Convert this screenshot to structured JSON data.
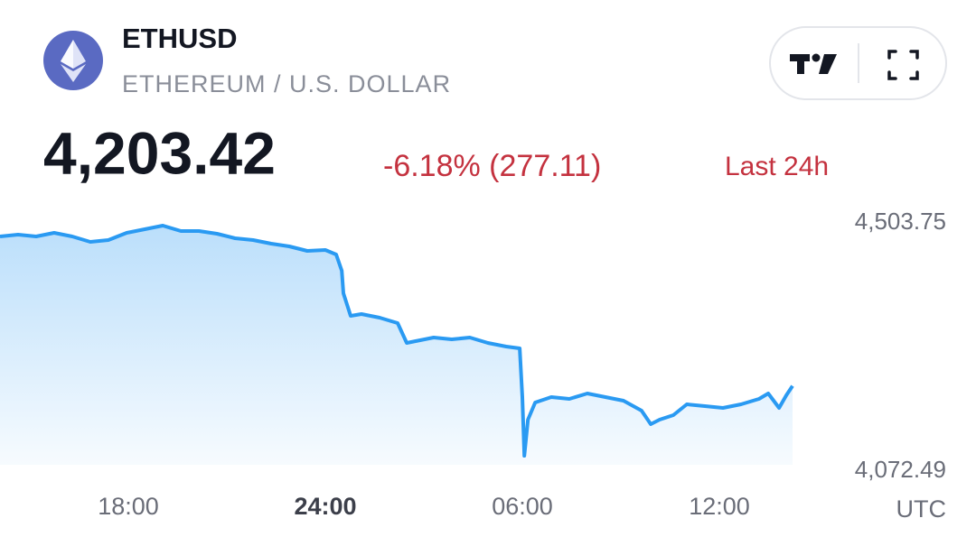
{
  "header": {
    "symbol": "ETHUSD",
    "description": "ETHEREUM / U.S. DOLLAR",
    "price": "4,203.42",
    "change": "-6.18% (277.11)",
    "period": "Last 24h"
  },
  "chart_data": {
    "type": "area",
    "color": "#2a9af2",
    "x": [
      14.09,
      14.64,
      15.19,
      15.74,
      16.29,
      16.84,
      17.39,
      17.95,
      18.5,
      19.05,
      19.6,
      20.15,
      20.7,
      21.25,
      21.8,
      22.35,
      22.9,
      23.45,
      24.0,
      24.33,
      24.5,
      24.55,
      24.77,
      25.1,
      25.65,
      26.2,
      26.48,
      26.75,
      27.3,
      27.85,
      28.4,
      28.95,
      29.51,
      29.92,
      30.0,
      30.06,
      30.17,
      30.39,
      30.88,
      31.43,
      31.98,
      32.53,
      33.08,
      33.63,
      33.91,
      34.18,
      34.6,
      35.01,
      35.56,
      36.11,
      36.66,
      37.21,
      37.49,
      37.82,
      38.04,
      38.23
    ],
    "values": [
      4483.45,
      4486.83,
      4483.45,
      4490.22,
      4483.45,
      4473.3,
      4476.69,
      4490.22,
      4496.98,
      4503.75,
      4493.6,
      4493.6,
      4488.53,
      4480.07,
      4476.69,
      4469.92,
      4464.85,
      4456.39,
      4458.08,
      4449.63,
      4419.19,
      4376.91,
      4334.63,
      4338.01,
      4331.24,
      4321.1,
      4283.89,
      4287.27,
      4294.04,
      4290.65,
      4294.04,
      4283.89,
      4277.13,
      4273.74,
      4182.42,
      4072.49,
      4140.14,
      4172.27,
      4182.42,
      4179.04,
      4189.18,
      4182.42,
      4175.65,
      4157.05,
      4131.68,
      4140.14,
      4148.59,
      4168.89,
      4165.51,
      4162.12,
      4168.89,
      4179.04,
      4189.18,
      4162.12,
      4185.8,
      4203.42
    ],
    "xlim": [
      14.09,
      38.23
    ],
    "xticks": [
      {
        "value": 18,
        "label": "18:00"
      },
      {
        "value": 24,
        "label": "24:00"
      },
      {
        "value": 30,
        "label": "06:00"
      },
      {
        "value": 36,
        "label": "12:00"
      }
    ],
    "ylim": [
      4072.49,
      4503.75
    ],
    "yticks": [
      {
        "value": 4503.75,
        "label": "4,503.75"
      },
      {
        "value": 4072.49,
        "label": "4,072.49"
      }
    ],
    "x_unit": "UTC"
  }
}
